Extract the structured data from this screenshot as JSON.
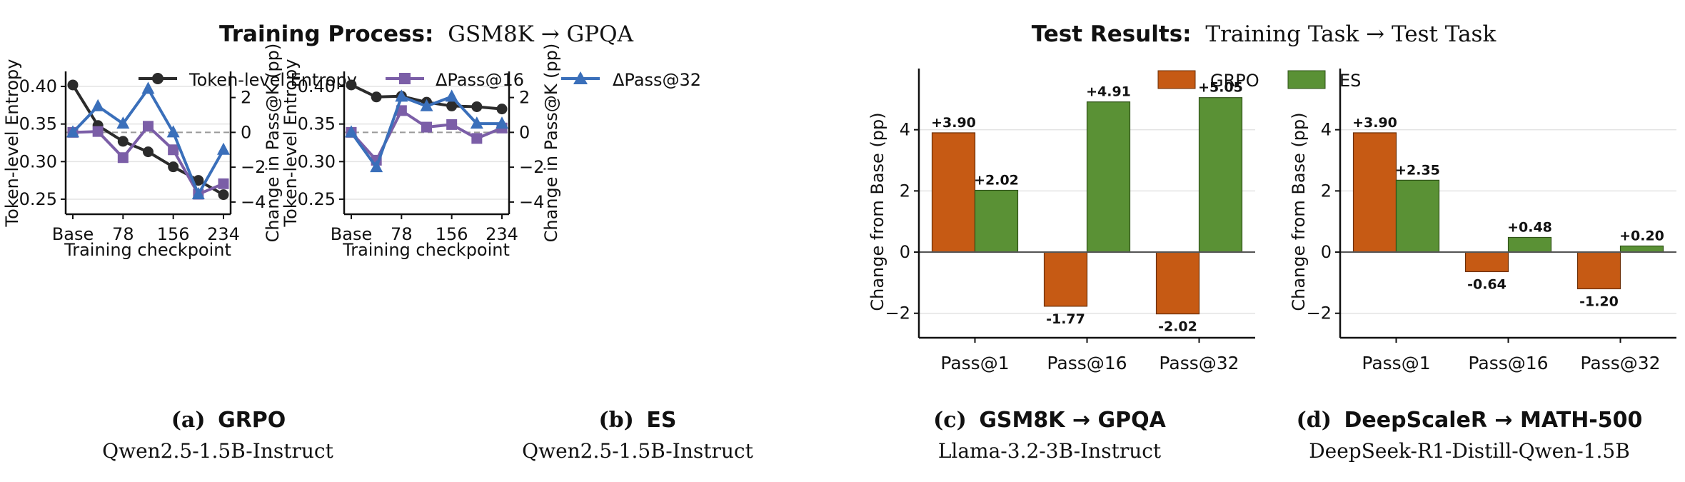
{
  "figure": {
    "left_header": {
      "bold": "Training Process:",
      "rest": "GSM8K → GPQA"
    },
    "right_header": {
      "bold": "Test Results:",
      "rest": "Training Task → Test Task"
    },
    "left_legend": [
      "Token-level Entropy",
      "ΔPass@16",
      "ΔPass@32"
    ],
    "right_legend": [
      "GRPO",
      "ES"
    ],
    "colors": {
      "entropy": "#2b2b2b",
      "pass16": "#7b5ea7",
      "pass32": "#3a6fba",
      "grpo": "#c65a14",
      "es": "#5a9135"
    },
    "captions": [
      {
        "label": "(a)",
        "title": "GRPO",
        "model": "Qwen2.5-1.5B-Instruct"
      },
      {
        "label": "(b)",
        "title": "ES",
        "model": "Qwen2.5-1.5B-Instruct"
      },
      {
        "label": "(c)",
        "title": "GSM8K → GPQA",
        "model": "Llama-3.2-3B-Instruct"
      },
      {
        "label": "(d)",
        "title": "DeepScaleR → MATH-500",
        "model": "DeepSeek-R1-Distill-Qwen-1.5B"
      }
    ]
  },
  "chart_data": [
    {
      "type": "line",
      "panel": "a",
      "xlabel": "Training checkpoint",
      "ylabel": "Token-level Entropy",
      "ylabel_right": "Change in Pass@K (pp)",
      "x": [
        0,
        39,
        78,
        117,
        156,
        195,
        234
      ],
      "x_tick_labels": [
        "Base",
        "78",
        "156",
        "234"
      ],
      "x_ticks": [
        0,
        78,
        156,
        234
      ],
      "ylim": [
        0.23,
        0.42
      ],
      "y_ticks": [
        0.25,
        0.3,
        0.35,
        0.4
      ],
      "ylim_right": [
        -4.7,
        3.5
      ],
      "y_ticks_right": [
        -4,
        -2,
        0,
        2
      ],
      "series": [
        {
          "name": "Token-level Entropy",
          "axis": "left",
          "values": [
            0.402,
            0.348,
            0.327,
            0.313,
            0.293,
            0.275,
            0.256
          ]
        },
        {
          "name": "ΔPass@16",
          "axis": "right",
          "values": [
            0.0,
            0.05,
            -1.45,
            0.35,
            -1.0,
            -3.55,
            -2.95
          ]
        },
        {
          "name": "ΔPass@32",
          "axis": "right",
          "values": [
            0.0,
            1.5,
            0.5,
            2.5,
            0.0,
            -3.55,
            -1.0
          ]
        }
      ],
      "zero_line": true
    },
    {
      "type": "line",
      "panel": "b",
      "xlabel": "Training checkpoint",
      "ylabel": "Token-level Entropy",
      "ylabel_right": "Change in Pass@K (pp)",
      "x": [
        0,
        39,
        78,
        117,
        156,
        195,
        234
      ],
      "x_tick_labels": [
        "Base",
        "78",
        "156",
        "234"
      ],
      "x_ticks": [
        0,
        78,
        156,
        234
      ],
      "ylim": [
        0.23,
        0.42
      ],
      "y_ticks": [
        0.25,
        0.3,
        0.35,
        0.4
      ],
      "ylim_right": [
        -4.7,
        3.5
      ],
      "y_ticks_right": [
        -4,
        -2,
        0,
        2
      ],
      "series": [
        {
          "name": "Token-level Entropy",
          "axis": "left",
          "values": [
            0.402,
            0.386,
            0.387,
            0.379,
            0.374,
            0.373,
            0.37
          ]
        },
        {
          "name": "ΔPass@16",
          "axis": "right",
          "values": [
            0.0,
            -1.6,
            1.25,
            0.3,
            0.45,
            -0.35,
            0.25
          ]
        },
        {
          "name": "ΔPass@32",
          "axis": "right",
          "values": [
            0.0,
            -2.0,
            2.05,
            1.5,
            2.05,
            0.5,
            0.5
          ]
        }
      ],
      "zero_line": true
    },
    {
      "type": "bar",
      "panel": "c",
      "ylabel": "Change from Base (pp)",
      "categories": [
        "Pass@1",
        "Pass@16",
        "Pass@32"
      ],
      "ylim": [
        -2.8,
        6.0
      ],
      "y_ticks": [
        -2,
        0,
        2,
        4
      ],
      "series": [
        {
          "name": "GRPO",
          "values": [
            3.9,
            -1.77,
            -2.02
          ],
          "labels": [
            "+3.90",
            "-1.77",
            "-2.02"
          ]
        },
        {
          "name": "ES",
          "values": [
            2.02,
            4.91,
            5.05
          ],
          "labels": [
            "+2.02",
            "+4.91",
            "+5.05"
          ]
        }
      ]
    },
    {
      "type": "bar",
      "panel": "d",
      "ylabel": "Change from Base (pp)",
      "categories": [
        "Pass@1",
        "Pass@16",
        "Pass@32"
      ],
      "ylim": [
        -2.8,
        6.0
      ],
      "y_ticks": [
        -2,
        0,
        2,
        4
      ],
      "series": [
        {
          "name": "GRPO",
          "values": [
            3.9,
            -0.64,
            -1.2
          ],
          "labels": [
            "+3.90",
            "-0.64",
            "-1.20"
          ]
        },
        {
          "name": "ES",
          "values": [
            2.35,
            0.48,
            0.2
          ],
          "labels": [
            "+2.35",
            "+0.48",
            "+0.20"
          ]
        }
      ]
    }
  ]
}
